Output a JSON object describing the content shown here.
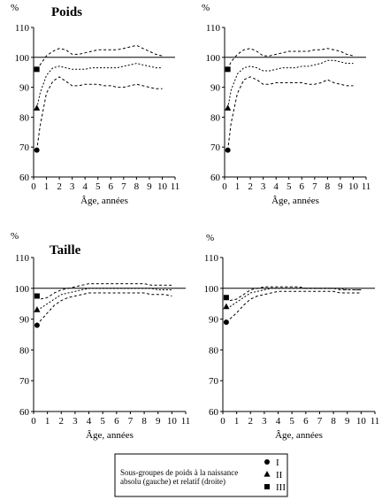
{
  "chart_data": [
    {
      "type": "line",
      "title": "Poids",
      "xlabel": "Âge, années",
      "ylabel": "%",
      "xlim": [
        0,
        11
      ],
      "ylim": [
        60,
        110
      ],
      "x_ticks": [
        0,
        1,
        2,
        3,
        4,
        5,
        6,
        7,
        8,
        9,
        10,
        11
      ],
      "y_ticks": [
        60,
        70,
        80,
        90,
        100,
        110
      ],
      "reference_line": 100,
      "series": [
        {
          "name": "I",
          "marker": "circle",
          "x": [
            0.25,
            0.5,
            1,
            1.5,
            2,
            2.5,
            3,
            3.5,
            4,
            4.5,
            5,
            5.5,
            6,
            6.5,
            7,
            7.5,
            8,
            8.5,
            9,
            9.5,
            10
          ],
          "y": [
            69,
            77,
            88,
            92,
            93.5,
            92,
            90.5,
            90.5,
            91,
            91,
            91,
            90.5,
            90.5,
            90,
            90,
            90.5,
            91,
            90.5,
            90,
            89.5,
            89.5
          ]
        },
        {
          "name": "II",
          "marker": "triangle",
          "x": [
            0.25,
            0.5,
            1,
            1.5,
            2,
            2.5,
            3,
            3.5,
            4,
            4.5,
            5,
            5.5,
            6,
            6.5,
            7,
            7.5,
            8,
            8.5,
            9,
            9.5,
            10
          ],
          "y": [
            83,
            88,
            94,
            96.5,
            97,
            96.5,
            96,
            96,
            96,
            96.5,
            96.5,
            96.5,
            96.5,
            96.5,
            97,
            97.5,
            98,
            97.5,
            97,
            96.5,
            96.5
          ]
        },
        {
          "name": "III",
          "marker": "square",
          "x": [
            0.25,
            0.5,
            1,
            1.5,
            2,
            2.5,
            3,
            3.5,
            4,
            4.5,
            5,
            5.5,
            6,
            6.5,
            7,
            7.5,
            8,
            8.5,
            9,
            9.5,
            10
          ],
          "y": [
            96,
            97.5,
            100.5,
            102,
            103,
            102.5,
            101,
            101,
            101.5,
            102,
            102.5,
            102.5,
            102.5,
            102.5,
            103,
            103.5,
            104,
            103,
            102,
            101,
            100.5
          ]
        }
      ]
    },
    {
      "type": "line",
      "title": "",
      "xlabel": "Âge, années",
      "ylabel": "%",
      "xlim": [
        0,
        11
      ],
      "ylim": [
        60,
        110
      ],
      "x_ticks": [
        0,
        1,
        2,
        3,
        4,
        5,
        6,
        7,
        8,
        9,
        10,
        11
      ],
      "y_ticks": [
        60,
        70,
        80,
        90,
        100,
        110
      ],
      "reference_line": 100,
      "series": [
        {
          "name": "I",
          "marker": "circle",
          "x": [
            0.25,
            0.5,
            1,
            1.5,
            2,
            2.5,
            3,
            3.5,
            4,
            4.5,
            5,
            5.5,
            6,
            6.5,
            7,
            7.5,
            8,
            8.5,
            9,
            9.5,
            10
          ],
          "y": [
            69,
            78,
            88,
            92.5,
            93.5,
            92.5,
            91,
            91,
            91.5,
            91.5,
            91.5,
            91.5,
            91.5,
            91,
            91,
            91.5,
            92.5,
            91.5,
            91,
            90.5,
            90.5
          ]
        },
        {
          "name": "II",
          "marker": "triangle",
          "x": [
            0.25,
            0.5,
            1,
            1.5,
            2,
            2.5,
            3,
            3.5,
            4,
            4.5,
            5,
            5.5,
            6,
            6.5,
            7,
            7.5,
            8,
            8.5,
            9,
            9.5,
            10
          ],
          "y": [
            83,
            89,
            94.5,
            96.5,
            97,
            96.5,
            95.5,
            95.5,
            96,
            96.5,
            96.5,
            96.5,
            97,
            97,
            97.5,
            98,
            99,
            99,
            98.5,
            98,
            98
          ]
        },
        {
          "name": "III",
          "marker": "square",
          "x": [
            0.25,
            0.5,
            1,
            1.5,
            2,
            2.5,
            3,
            3.5,
            4,
            4.5,
            5,
            5.5,
            6,
            6.5,
            7,
            7.5,
            8,
            8.5,
            9,
            9.5,
            10
          ],
          "y": [
            96,
            98.5,
            101,
            102.5,
            103,
            102,
            100.5,
            100.5,
            101,
            101.5,
            102,
            102,
            102,
            102,
            102.5,
            102.5,
            103,
            102.5,
            102,
            101,
            100.5
          ]
        }
      ]
    },
    {
      "type": "line",
      "title": "Taille",
      "xlabel": "Âge, années",
      "ylabel": "%",
      "xlim": [
        0,
        11
      ],
      "ylim": [
        60,
        110
      ],
      "x_ticks": [
        0,
        1,
        2,
        3,
        4,
        5,
        6,
        7,
        8,
        9,
        10,
        11
      ],
      "y_ticks": [
        60,
        70,
        80,
        90,
        100,
        110
      ],
      "reference_line": 100,
      "series": [
        {
          "name": "I",
          "marker": "circle",
          "x": [
            0.25,
            0.5,
            1,
            1.5,
            2,
            2.5,
            3,
            3.5,
            4,
            4.5,
            5,
            5.5,
            6,
            6.5,
            7,
            7.5,
            8,
            8.5,
            9,
            9.5,
            10
          ],
          "y": [
            88,
            89.5,
            92,
            94.5,
            96,
            97,
            97.5,
            98,
            98.5,
            98.5,
            98.5,
            98.5,
            98.5,
            98.5,
            98.5,
            98.5,
            98.5,
            98,
            98,
            98,
            97.5
          ]
        },
        {
          "name": "II",
          "marker": "triangle",
          "x": [
            0.25,
            0.5,
            1,
            1.5,
            2,
            2.5,
            3,
            3.5,
            4,
            4.5,
            5,
            5.5,
            6,
            6.5,
            7,
            7.5,
            8,
            8.5,
            9,
            9.5,
            10
          ],
          "y": [
            93,
            93.5,
            95,
            96.5,
            98,
            98.5,
            99,
            99.5,
            100,
            100,
            100,
            100,
            100,
            100,
            100,
            100,
            100,
            100,
            99.5,
            99.5,
            99.5
          ]
        },
        {
          "name": "III",
          "marker": "square",
          "x": [
            0.25,
            0.5,
            1,
            1.5,
            2,
            2.5,
            3,
            3.5,
            4,
            4.5,
            5,
            5.5,
            6,
            6.5,
            7,
            7.5,
            8,
            8.5,
            9,
            9.5,
            10
          ],
          "y": [
            97.5,
            96.5,
            97,
            98.5,
            99.5,
            100,
            100.5,
            101,
            101.5,
            101.5,
            101.5,
            101.5,
            101.5,
            101.5,
            101.5,
            101.5,
            101.5,
            101,
            101,
            101,
            101
          ]
        }
      ]
    },
    {
      "type": "line",
      "title": "",
      "xlabel": "Âge, années",
      "ylabel": "%",
      "xlim": [
        0,
        11
      ],
      "ylim": [
        60,
        110
      ],
      "x_ticks": [
        0,
        1,
        2,
        3,
        4,
        5,
        6,
        7,
        8,
        9,
        10,
        11
      ],
      "y_ticks": [
        60,
        70,
        80,
        90,
        100,
        110
      ],
      "reference_line": 100,
      "series": [
        {
          "name": "I",
          "marker": "circle",
          "x": [
            0.25,
            0.5,
            1,
            1.5,
            2,
            2.5,
            3,
            3.5,
            4,
            4.5,
            5,
            5.5,
            6,
            6.5,
            7,
            7.5,
            8,
            8.5,
            9,
            9.5,
            10
          ],
          "y": [
            89,
            90,
            92,
            94.5,
            96.5,
            97.5,
            98,
            98.5,
            99,
            99,
            99,
            99,
            99,
            99,
            99,
            99,
            99,
            98.5,
            98.5,
            98.5,
            98.5
          ]
        },
        {
          "name": "II",
          "marker": "triangle",
          "x": [
            0.25,
            0.5,
            1,
            1.5,
            2,
            2.5,
            3,
            3.5,
            4,
            4.5,
            5,
            5.5,
            6,
            6.5,
            7,
            7.5,
            8,
            8.5,
            9,
            9.5,
            10
          ],
          "y": [
            94,
            94,
            95.5,
            97,
            98.5,
            99,
            99.5,
            100,
            100,
            100,
            100,
            100,
            100,
            100,
            100,
            100,
            100,
            100,
            99.5,
            99.5,
            99.5
          ]
        },
        {
          "name": "III",
          "marker": "square",
          "x": [
            0.25,
            0.5,
            1,
            1.5,
            2,
            2.5,
            3,
            3.5,
            4,
            4.5,
            5,
            5.5,
            6,
            6.5,
            7,
            7.5,
            8,
            8.5,
            9,
            9.5,
            10
          ],
          "y": [
            97,
            96,
            96.5,
            98,
            99.5,
            100,
            100.5,
            100.5,
            100.5,
            100.5,
            100.5,
            100.5,
            100,
            100,
            100,
            100,
            100,
            99.5,
            99.5,
            99.5,
            99.5
          ]
        }
      ]
    }
  ],
  "legend": {
    "line1": "Sous-groupes de poids à la naissance",
    "line2": "absolu (gauche) et relatif (droite)",
    "entries": [
      {
        "label": "I",
        "marker": "circle"
      },
      {
        "label": "II",
        "marker": "triangle"
      },
      {
        "label": "III",
        "marker": "square"
      }
    ]
  }
}
